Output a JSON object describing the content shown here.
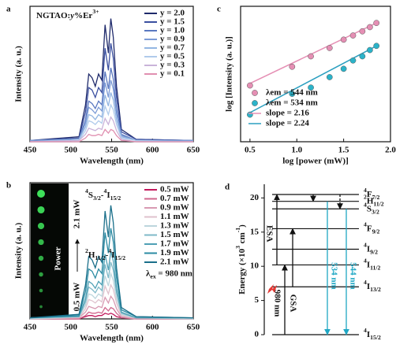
{
  "chart_data": [
    {
      "type": "line",
      "label": "a",
      "annotation": [
        {
          "t": "NGTAO:"
        },
        {
          "t": "y",
          "s": "i"
        },
        {
          "t": "%Er"
        },
        {
          "t": "3+",
          "s": "sup"
        }
      ],
      "xlabel": "Wavelength (nm)",
      "ylabel": "Intensity (a. u.)",
      "x": [
        450,
        510,
        518,
        522,
        526,
        530,
        534,
        538,
        542,
        546,
        549,
        552,
        556,
        562,
        580,
        650
      ],
      "xlim": [
        450,
        650
      ],
      "xticks": [
        450,
        500,
        550,
        600,
        650
      ],
      "ylim": [
        0,
        1.1
      ],
      "legend": "upper right",
      "series": [
        {
          "name": "y = 2.0",
          "color": "#1f2a6b",
          "values": [
            0.01,
            0.04,
            0.3,
            0.55,
            0.52,
            0.45,
            0.55,
            0.5,
            0.95,
            0.72,
            1.0,
            0.85,
            0.45,
            0.1,
            0.02,
            0.01
          ]
        },
        {
          "name": "y = 1.5",
          "color": "#3a4fa0",
          "values": [
            0.01,
            0.03,
            0.24,
            0.44,
            0.42,
            0.36,
            0.44,
            0.4,
            0.76,
            0.58,
            0.8,
            0.68,
            0.36,
            0.08,
            0.02,
            0.01
          ]
        },
        {
          "name": "y = 1.0",
          "color": "#5a78c0",
          "values": [
            0.01,
            0.02,
            0.18,
            0.33,
            0.31,
            0.27,
            0.33,
            0.3,
            0.57,
            0.43,
            0.6,
            0.51,
            0.27,
            0.06,
            0.01,
            0.01
          ]
        },
        {
          "name": "y = 0.9",
          "color": "#7c9bd6",
          "values": [
            0.01,
            0.02,
            0.15,
            0.28,
            0.26,
            0.23,
            0.28,
            0.25,
            0.48,
            0.36,
            0.5,
            0.43,
            0.23,
            0.05,
            0.01,
            0.01
          ]
        },
        {
          "name": "y = 0.7",
          "color": "#93b6e2",
          "values": [
            0,
            0.02,
            0.12,
            0.22,
            0.21,
            0.18,
            0.22,
            0.2,
            0.38,
            0.29,
            0.4,
            0.34,
            0.18,
            0.04,
            0.01,
            0
          ]
        },
        {
          "name": "y = 0.5",
          "color": "#b0cbeb",
          "values": [
            0,
            0.01,
            0.09,
            0.17,
            0.16,
            0.14,
            0.17,
            0.15,
            0.29,
            0.22,
            0.3,
            0.26,
            0.14,
            0.03,
            0.01,
            0
          ]
        },
        {
          "name": "y = 0.3",
          "color": "#c9b3d9",
          "values": [
            0,
            0.01,
            0.06,
            0.11,
            0.1,
            0.09,
            0.11,
            0.1,
            0.19,
            0.14,
            0.2,
            0.17,
            0.09,
            0.02,
            0,
            0
          ]
        },
        {
          "name": "y = 0.1",
          "color": "#e08fb0",
          "values": [
            0,
            0,
            0.03,
            0.06,
            0.05,
            0.05,
            0.06,
            0.05,
            0.1,
            0.07,
            0.1,
            0.09,
            0.05,
            0.01,
            0,
            0
          ]
        }
      ]
    },
    {
      "type": "line",
      "label": "b",
      "xlabel": "Wavelength (nm)",
      "ylabel": "Intensity (a. u.)",
      "x": [
        450,
        510,
        518,
        522,
        526,
        530,
        534,
        538,
        542,
        546,
        549,
        552,
        556,
        562,
        580,
        650
      ],
      "xlim": [
        450,
        650
      ],
      "xticks": [
        450,
        500,
        550,
        600,
        650
      ],
      "ylim": [
        0,
        1.2
      ],
      "legend": "upper right",
      "peak_labels": [
        [
          {
            "t": "4",
            "s": "sup"
          },
          {
            "t": "S"
          },
          {
            "t": "3/2",
            "s": "sub"
          },
          {
            "t": "-"
          },
          {
            "t": "4",
            "s": "sup"
          },
          {
            "t": "I"
          },
          {
            "t": "15/2",
            "s": "sub"
          }
        ],
        [
          {
            "t": "2",
            "s": "sup"
          },
          {
            "t": "H"
          },
          {
            "t": "11/2",
            "s": "sub"
          },
          {
            "t": "-"
          },
          {
            "t": "4",
            "s": "sup"
          },
          {
            "t": "I"
          },
          {
            "t": "15/2",
            "s": "sub"
          }
        ]
      ],
      "excitation": [
        {
          "t": "λ"
        },
        {
          "t": "ex",
          "s": "sub"
        },
        {
          "t": " = 980 nm"
        }
      ],
      "inset": {
        "title": "Power",
        "high": "2.1 mW",
        "low": "0.5 mW"
      },
      "series": [
        {
          "name": "0.5 mW",
          "color": "#c2185b",
          "values": [
            0,
            0,
            0.02,
            0.03,
            0.03,
            0.02,
            0.03,
            0.03,
            0.05,
            0.04,
            0.05,
            0.04,
            0.02,
            0.01,
            0,
            0
          ]
        },
        {
          "name": "0.7 mW",
          "color": "#d0678d",
          "values": [
            0,
            0,
            0.03,
            0.06,
            0.05,
            0.05,
            0.06,
            0.05,
            0.1,
            0.07,
            0.1,
            0.09,
            0.05,
            0.01,
            0,
            0
          ]
        },
        {
          "name": "0.9 mW",
          "color": "#d89ab2",
          "values": [
            0,
            0.01,
            0.06,
            0.11,
            0.1,
            0.09,
            0.11,
            0.1,
            0.19,
            0.14,
            0.2,
            0.17,
            0.09,
            0.02,
            0,
            0
          ]
        },
        {
          "name": "1.1 mW",
          "color": "#dfc2cd",
          "values": [
            0,
            0.01,
            0.09,
            0.17,
            0.16,
            0.14,
            0.17,
            0.15,
            0.29,
            0.22,
            0.3,
            0.26,
            0.14,
            0.03,
            0.01,
            0
          ]
        },
        {
          "name": "1.3 mW",
          "color": "#bcd6dd",
          "values": [
            0,
            0.02,
            0.12,
            0.22,
            0.21,
            0.18,
            0.22,
            0.2,
            0.38,
            0.29,
            0.4,
            0.34,
            0.18,
            0.04,
            0.01,
            0
          ]
        },
        {
          "name": "1.5 mW",
          "color": "#7fb9c8",
          "values": [
            0.01,
            0.02,
            0.15,
            0.28,
            0.26,
            0.23,
            0.28,
            0.25,
            0.48,
            0.36,
            0.5,
            0.43,
            0.23,
            0.05,
            0.01,
            0.01
          ]
        },
        {
          "name": "1.7 mW",
          "color": "#4fa0b5",
          "values": [
            0.01,
            0.02,
            0.18,
            0.33,
            0.31,
            0.27,
            0.33,
            0.3,
            0.57,
            0.43,
            0.6,
            0.51,
            0.27,
            0.06,
            0.01,
            0.01
          ]
        },
        {
          "name": "1.9 mW",
          "color": "#2b8ba3",
          "values": [
            0.01,
            0.03,
            0.24,
            0.44,
            0.42,
            0.36,
            0.44,
            0.4,
            0.76,
            0.58,
            0.8,
            0.68,
            0.36,
            0.08,
            0.02,
            0.01
          ]
        },
        {
          "name": "2.1 mW",
          "color": "#1a6f8a",
          "values": [
            0.01,
            0.04,
            0.3,
            0.55,
            0.52,
            0.45,
            0.55,
            0.5,
            0.95,
            0.72,
            1.0,
            0.85,
            0.45,
            0.1,
            0.02,
            0.01
          ]
        }
      ]
    },
    {
      "type": "scatter",
      "label": "c",
      "xlabel": "log [power (mW)]",
      "ylabel": "log [Intensity (a. u.)]",
      "xlim": [
        0.4,
        2.0
      ],
      "xticks": [
        0.5,
        {
          "value": 1,
          "label": "1.0"
        },
        1.5,
        {
          "value": 2,
          "label": "2.0"
        }
      ],
      "ylim": [
        2.5,
        9
      ],
      "legend": "lower left",
      "series": [
        {
          "name": "λem = 544 nm",
          "color": "#e58fb4",
          "x": [
            0.5,
            0.95,
            1.15,
            1.35,
            1.5,
            1.6,
            1.7,
            1.78,
            1.85
          ],
          "values": [
            5.2,
            6.1,
            6.6,
            7.0,
            7.4,
            7.6,
            7.8,
            8.0,
            8.2
          ]
        },
        {
          "name": "λem = 534 nm",
          "color": "#2bb3c9",
          "x": [
            0.5,
            0.95,
            1.15,
            1.35,
            1.5,
            1.6,
            1.7,
            1.78,
            1.85
          ],
          "values": [
            3.8,
            4.8,
            5.1,
            5.6,
            6.0,
            6.4,
            6.6,
            6.9,
            7.1
          ]
        }
      ],
      "fits": [
        {
          "name": "slope = 2.16",
          "color": "#e58fb4",
          "x": [
            0.5,
            1.85
          ],
          "values": [
            5.3,
            8.2
          ]
        },
        {
          "name": "slope = 2.24",
          "color": "#2b9fc0",
          "x": [
            0.5,
            1.85
          ],
          "values": [
            3.9,
            7.1
          ]
        }
      ]
    },
    {
      "type": "energy-levels",
      "label": "d",
      "ylabel": [
        {
          "t": "Energy (×10"
        },
        {
          "t": "3",
          "s": "sup"
        },
        {
          "t": " cm"
        },
        {
          "t": "-1",
          "s": "sup"
        },
        {
          "t": ")"
        }
      ],
      "ylim": [
        0,
        22
      ],
      "yticks": [
        0,
        5,
        10,
        15,
        20
      ],
      "levels": [
        {
          "energy": 20.5,
          "label": [
            {
              "t": "4",
              "s": "sup"
            },
            {
              "t": "F"
            },
            {
              "t": "7/2",
              "s": "sub"
            }
          ]
        },
        {
          "energy": 19.5,
          "label": [
            {
              "t": "2",
              "s": "sup"
            },
            {
              "t": "H"
            },
            {
              "t": "11/2",
              "s": "sub"
            }
          ]
        },
        {
          "energy": 18.4,
          "label": [
            {
              "t": "4",
              "s": "sup"
            },
            {
              "t": "S"
            },
            {
              "t": "3/2",
              "s": "sub"
            }
          ]
        },
        {
          "energy": 15.5,
          "label": [
            {
              "t": "4",
              "s": "sup"
            },
            {
              "t": "F"
            },
            {
              "t": "9/2",
              "s": "sub"
            }
          ]
        },
        {
          "energy": 12.5,
          "label": [
            {
              "t": "4",
              "s": "sup"
            },
            {
              "t": "I"
            },
            {
              "t": "9/2",
              "s": "sub"
            }
          ]
        },
        {
          "energy": 10.2,
          "label": [
            {
              "t": "4",
              "s": "sup"
            },
            {
              "t": "I"
            },
            {
              "t": "11/2",
              "s": "sub"
            }
          ]
        },
        {
          "energy": 7,
          "label": [
            {
              "t": "4",
              "s": "sup"
            },
            {
              "t": "I"
            },
            {
              "t": "13/2",
              "s": "sub"
            }
          ]
        },
        {
          "energy": 0,
          "label": [
            {
              "t": "4",
              "s": "sup"
            },
            {
              "t": "I"
            },
            {
              "t": "15/2",
              "s": "sub"
            }
          ]
        }
      ],
      "transitions": {
        "pump": "980 nm",
        "gsa": "GSA",
        "esa": "ESA",
        "green1": "534 nm",
        "green2": "544 nm"
      }
    }
  ]
}
